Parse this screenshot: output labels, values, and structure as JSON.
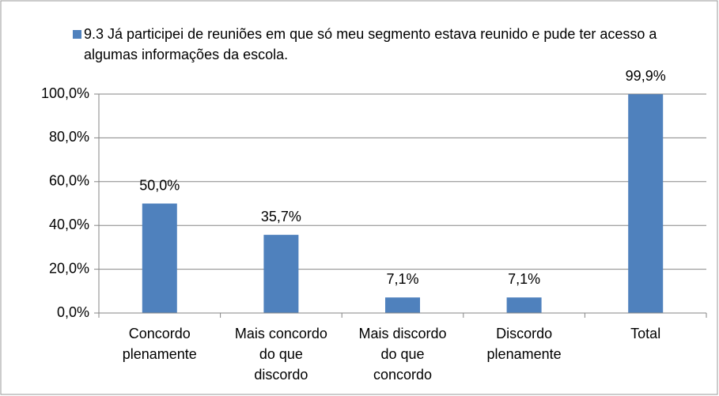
{
  "chart_data": {
    "type": "bar",
    "series": [
      {
        "name": "9.3 Já participei de reuniões em que só meu segmento estava reunido e pude ter acesso a algumas informações da escola.",
        "color": "#4f81bd",
        "values": [
          50.0,
          35.7,
          7.1,
          7.1,
          99.9
        ],
        "value_labels": [
          "50,0%",
          "35,7%",
          "7,1%",
          "7,1%",
          "99,9%"
        ]
      }
    ],
    "categories": [
      "Concordo\nplenamente",
      "Mais concordo\ndo que\ndiscordo",
      "Mais discordo\ndo que\nconcordo",
      "Discordo\nplenamente",
      "Total"
    ],
    "ylim": [
      0,
      100
    ],
    "yticks": [
      {
        "value": 0,
        "label": "0,0%"
      },
      {
        "value": 20,
        "label": "20,0%"
      },
      {
        "value": 40,
        "label": "40,0%"
      },
      {
        "value": 60,
        "label": "60,0%"
      },
      {
        "value": 80,
        "label": "80,0%"
      },
      {
        "value": 100,
        "label": "100,0%"
      }
    ],
    "grid": true,
    "legend": "top"
  }
}
